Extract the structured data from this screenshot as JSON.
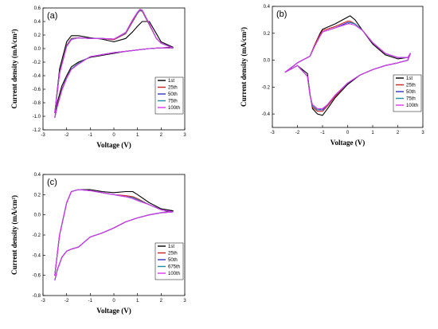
{
  "chart_data": [
    {
      "type": "line",
      "panel_label": "(a)",
      "xlabel": "Voltage (V)",
      "ylabel": "Current density (mA/cm²)",
      "xlim": [
        -3,
        3
      ],
      "ylim": [
        -1.2,
        0.6
      ],
      "xticks": [
        -3,
        -2,
        -1,
        0,
        1,
        2,
        3
      ],
      "yticks": [
        -1.2,
        -1.0,
        -0.8,
        -0.6,
        -0.4,
        -0.2,
        0.0,
        0.2,
        0.4,
        0.6
      ],
      "legend": [
        "1st",
        "25th",
        "50th",
        "75th",
        "100th"
      ],
      "legend_colors": [
        "#000000",
        "#cc2222",
        "#3333cc",
        "#1a8fa0",
        "#dd33ee"
      ],
      "series": [
        {
          "name": "1st",
          "x": [
            -2.5,
            -2.3,
            -2.0,
            -1.8,
            -1.5,
            -1.0,
            -0.5,
            0.0,
            0.5,
            0.8,
            1.0,
            1.2,
            1.5,
            1.8,
            2.0,
            2.5,
            2.0,
            1.5,
            1.0,
            0.5,
            0.0,
            -0.5,
            -1.0,
            -1.5,
            -1.8,
            -2.0,
            -2.2,
            -2.4,
            -2.5
          ],
          "y": [
            -0.95,
            -0.3,
            0.1,
            0.19,
            0.19,
            0.16,
            0.14,
            0.1,
            0.15,
            0.25,
            0.33,
            0.4,
            0.4,
            0.22,
            0.1,
            0.02,
            0.01,
            0.0,
            -0.02,
            -0.04,
            -0.07,
            -0.1,
            -0.13,
            -0.2,
            -0.27,
            -0.4,
            -0.55,
            -0.8,
            -1.02
          ]
        },
        {
          "name": "25th",
          "x": [
            -2.5,
            -2.3,
            -2.0,
            -1.8,
            -1.5,
            -1.0,
            -0.5,
            0.0,
            0.5,
            0.8,
            1.0,
            1.1,
            1.2,
            1.5,
            1.8,
            2.0,
            2.5,
            2.0,
            1.5,
            1.0,
            0.5,
            0.0,
            -0.5,
            -1.0,
            -1.5,
            -1.8,
            -2.0,
            -2.2,
            -2.4,
            -2.5
          ],
          "y": [
            -0.95,
            -0.35,
            0.05,
            0.15,
            0.16,
            0.15,
            0.15,
            0.13,
            0.22,
            0.4,
            0.52,
            0.56,
            0.55,
            0.35,
            0.15,
            0.08,
            0.01,
            0.01,
            0.0,
            -0.02,
            -0.04,
            -0.06,
            -0.09,
            -0.12,
            -0.22,
            -0.3,
            -0.42,
            -0.6,
            -0.85,
            -1.02
          ]
        },
        {
          "name": "50th",
          "x": [
            -2.5,
            -2.3,
            -2.0,
            -1.8,
            -1.5,
            -1.0,
            -0.5,
            0.0,
            0.5,
            0.8,
            1.0,
            1.1,
            1.2,
            1.5,
            1.8,
            2.0,
            2.5,
            2.0,
            1.5,
            1.0,
            0.5,
            0.0,
            -0.5,
            -1.0,
            -1.5,
            -1.8,
            -2.0,
            -2.2,
            -2.4,
            -2.5
          ],
          "y": [
            -0.95,
            -0.36,
            0.04,
            0.14,
            0.16,
            0.15,
            0.15,
            0.14,
            0.23,
            0.42,
            0.53,
            0.57,
            0.56,
            0.36,
            0.15,
            0.08,
            0.01,
            0.01,
            0.0,
            -0.02,
            -0.04,
            -0.06,
            -0.09,
            -0.12,
            -0.22,
            -0.3,
            -0.43,
            -0.61,
            -0.86,
            -1.02
          ]
        },
        {
          "name": "75th",
          "x": [
            -2.5,
            -2.3,
            -2.0,
            -1.8,
            -1.5,
            -1.0,
            -0.5,
            0.0,
            0.5,
            0.8,
            1.0,
            1.1,
            1.2,
            1.5,
            1.8,
            2.0,
            2.5,
            2.0,
            1.5,
            1.0,
            0.5,
            0.0,
            -0.5,
            -1.0,
            -1.5,
            -1.8,
            -2.0,
            -2.2,
            -2.4,
            -2.5
          ],
          "y": [
            -0.95,
            -0.36,
            0.04,
            0.14,
            0.16,
            0.15,
            0.15,
            0.14,
            0.23,
            0.42,
            0.53,
            0.57,
            0.56,
            0.36,
            0.15,
            0.08,
            0.01,
            0.01,
            0.0,
            -0.02,
            -0.04,
            -0.06,
            -0.09,
            -0.12,
            -0.22,
            -0.3,
            -0.43,
            -0.61,
            -0.86,
            -1.02
          ]
        },
        {
          "name": "100th",
          "x": [
            -2.5,
            -2.3,
            -2.0,
            -1.8,
            -1.5,
            -1.0,
            -0.5,
            0.0,
            0.5,
            0.8,
            1.0,
            1.1,
            1.2,
            1.5,
            1.8,
            2.0,
            2.5,
            2.0,
            1.5,
            1.0,
            0.5,
            0.0,
            -0.5,
            -1.0,
            -1.5,
            -1.8,
            -2.0,
            -2.2,
            -2.4,
            -2.5
          ],
          "y": [
            -0.95,
            -0.37,
            0.03,
            0.13,
            0.16,
            0.15,
            0.15,
            0.14,
            0.24,
            0.43,
            0.54,
            0.58,
            0.57,
            0.37,
            0.15,
            0.08,
            0.01,
            0.01,
            0.0,
            -0.02,
            -0.04,
            -0.06,
            -0.09,
            -0.12,
            -0.23,
            -0.31,
            -0.44,
            -0.62,
            -0.86,
            -1.02
          ]
        }
      ]
    },
    {
      "type": "line",
      "panel_label": "(b)",
      "xlabel": "Voltage (V)",
      "ylabel": "Current density (mA/cm²)",
      "xlim": [
        -3,
        3
      ],
      "ylim": [
        -0.5,
        0.4
      ],
      "xticks": [
        -3,
        -2,
        -1,
        0,
        1,
        2,
        3
      ],
      "yticks": [
        -0.4,
        -0.2,
        0.0,
        0.2,
        0.4
      ],
      "legend": [
        "1st",
        "25th",
        "50th",
        "75th",
        "100th"
      ],
      "legend_colors": [
        "#000000",
        "#cc2222",
        "#3333cc",
        "#1a8fa0",
        "#dd33ee"
      ],
      "series": [
        {
          "name": "1st",
          "x": [
            -2.5,
            -2.0,
            -1.5,
            -1.3,
            -1.1,
            -1.0,
            -0.5,
            0.0,
            0.1,
            0.3,
            0.6,
            1.0,
            1.5,
            2.0,
            2.4,
            2.5,
            2.4,
            2.0,
            1.5,
            1.0,
            0.5,
            0.0,
            -0.5,
            -0.8,
            -1.0,
            -1.2,
            -1.4,
            -1.5,
            -1.6,
            -2.0,
            -2.5
          ],
          "y": [
            -0.09,
            -0.02,
            0.03,
            0.12,
            0.2,
            0.23,
            0.27,
            0.32,
            0.33,
            0.3,
            0.22,
            0.12,
            0.04,
            0.01,
            0.02,
            0.05,
            0.0,
            -0.02,
            -0.04,
            -0.07,
            -0.11,
            -0.18,
            -0.28,
            -0.36,
            -0.41,
            -0.4,
            -0.36,
            -0.25,
            -0.1,
            -0.04,
            -0.09
          ]
        },
        {
          "name": "25th",
          "x": [
            -2.5,
            -2.0,
            -1.5,
            -1.3,
            -1.1,
            -1.0,
            -0.5,
            0.0,
            0.1,
            0.3,
            0.6,
            1.0,
            1.5,
            2.0,
            2.4,
            2.5,
            2.4,
            2.0,
            1.5,
            1.0,
            0.5,
            0.0,
            -0.5,
            -0.8,
            -1.0,
            -1.2,
            -1.4,
            -1.5,
            -1.6,
            -2.0,
            -2.5
          ],
          "y": [
            -0.09,
            -0.02,
            0.03,
            0.12,
            0.19,
            0.22,
            0.25,
            0.29,
            0.29,
            0.27,
            0.22,
            0.13,
            0.05,
            0.02,
            0.02,
            0.05,
            0.0,
            -0.02,
            -0.04,
            -0.07,
            -0.11,
            -0.17,
            -0.27,
            -0.34,
            -0.38,
            -0.38,
            -0.35,
            -0.26,
            -0.12,
            -0.04,
            -0.09
          ]
        },
        {
          "name": "50th",
          "x": [
            -2.5,
            -2.0,
            -1.5,
            -1.3,
            -1.1,
            -1.0,
            -0.5,
            0.0,
            0.1,
            0.3,
            0.6,
            1.0,
            1.5,
            2.0,
            2.4,
            2.5,
            2.4,
            2.0,
            1.5,
            1.0,
            0.5,
            0.0,
            -0.5,
            -0.8,
            -1.0,
            -1.2,
            -1.4,
            -1.5,
            -1.6,
            -2.0,
            -2.5
          ],
          "y": [
            -0.09,
            -0.02,
            0.03,
            0.11,
            0.18,
            0.21,
            0.24,
            0.28,
            0.28,
            0.27,
            0.22,
            0.13,
            0.05,
            0.02,
            0.02,
            0.05,
            0.0,
            -0.02,
            -0.04,
            -0.07,
            -0.11,
            -0.17,
            -0.26,
            -0.33,
            -0.37,
            -0.37,
            -0.34,
            -0.26,
            -0.12,
            -0.04,
            -0.09
          ]
        },
        {
          "name": "75th",
          "x": [
            -2.5,
            -2.0,
            -1.5,
            -1.3,
            -1.1,
            -1.0,
            -0.5,
            0.0,
            0.1,
            0.3,
            0.6,
            1.0,
            1.5,
            2.0,
            2.4,
            2.5,
            2.4,
            2.0,
            1.5,
            1.0,
            0.5,
            0.0,
            -0.5,
            -0.8,
            -1.0,
            -1.2,
            -1.4,
            -1.5,
            -1.6,
            -2.0,
            -2.5
          ],
          "y": [
            -0.09,
            -0.02,
            0.03,
            0.11,
            0.18,
            0.21,
            0.24,
            0.27,
            0.28,
            0.27,
            0.22,
            0.13,
            0.05,
            0.02,
            0.02,
            0.05,
            0.0,
            -0.02,
            -0.04,
            -0.07,
            -0.11,
            -0.17,
            -0.26,
            -0.33,
            -0.36,
            -0.37,
            -0.34,
            -0.26,
            -0.12,
            -0.04,
            -0.09
          ]
        },
        {
          "name": "100th",
          "x": [
            -2.5,
            -2.0,
            -1.5,
            -1.3,
            -1.1,
            -1.0,
            -0.5,
            0.0,
            0.1,
            0.3,
            0.6,
            1.0,
            1.5,
            2.0,
            2.4,
            2.5,
            2.4,
            2.0,
            1.5,
            1.0,
            0.5,
            0.0,
            -0.5,
            -0.8,
            -1.0,
            -1.2,
            -1.4,
            -1.5,
            -1.6,
            -2.0,
            -2.5
          ],
          "y": [
            -0.09,
            -0.02,
            0.03,
            0.11,
            0.18,
            0.21,
            0.24,
            0.27,
            0.27,
            0.26,
            0.22,
            0.13,
            0.05,
            0.02,
            0.02,
            0.05,
            0.0,
            -0.02,
            -0.04,
            -0.07,
            -0.11,
            -0.17,
            -0.26,
            -0.33,
            -0.36,
            -0.36,
            -0.33,
            -0.26,
            -0.12,
            -0.04,
            -0.09
          ]
        }
      ]
    },
    {
      "type": "line",
      "panel_label": "(c)",
      "xlabel": "Voltage (V)",
      "ylabel": "Current density (mA/cm²)",
      "xlim": [
        -3,
        3
      ],
      "ylim": [
        -0.8,
        0.4
      ],
      "xticks": [
        -3,
        -2,
        -1,
        0,
        1,
        2,
        3
      ],
      "yticks": [
        -0.8,
        -0.6,
        -0.4,
        -0.2,
        0.0,
        0.2,
        0.4
      ],
      "legend": [
        "1st",
        "25th",
        "50th",
        "675th",
        "100th"
      ],
      "legend_colors": [
        "#000000",
        "#cc2222",
        "#3333cc",
        "#1a8fa0",
        "#dd33ee"
      ],
      "series": [
        {
          "name": "1st",
          "x": [
            -2.5,
            -2.3,
            -2.0,
            -1.8,
            -1.5,
            -1.0,
            -0.5,
            0.0,
            0.5,
            0.8,
            1.0,
            1.5,
            2.0,
            2.5,
            2.0,
            1.5,
            1.0,
            0.5,
            0.0,
            -0.5,
            -1.0,
            -1.5,
            -1.8,
            -2.0,
            -2.2,
            -2.4,
            -2.5
          ],
          "y": [
            -0.6,
            -0.2,
            0.12,
            0.23,
            0.25,
            0.25,
            0.23,
            0.22,
            0.23,
            0.23,
            0.2,
            0.12,
            0.06,
            0.04,
            0.02,
            0.0,
            -0.03,
            -0.07,
            -0.13,
            -0.18,
            -0.22,
            -0.32,
            -0.34,
            -0.36,
            -0.42,
            -0.55,
            -0.65
          ]
        },
        {
          "name": "25th",
          "x": [
            -2.5,
            -2.3,
            -2.0,
            -1.8,
            -1.5,
            -1.0,
            -0.5,
            0.0,
            0.5,
            0.8,
            1.0,
            1.5,
            2.0,
            2.5,
            2.0,
            1.5,
            1.0,
            0.5,
            0.0,
            -0.5,
            -1.0,
            -1.5,
            -1.8,
            -2.0,
            -2.2,
            -2.4,
            -2.5
          ],
          "y": [
            -0.6,
            -0.2,
            0.12,
            0.23,
            0.25,
            0.24,
            0.22,
            0.2,
            0.19,
            0.18,
            0.16,
            0.1,
            0.05,
            0.03,
            0.02,
            0.0,
            -0.03,
            -0.07,
            -0.13,
            -0.18,
            -0.22,
            -0.32,
            -0.34,
            -0.36,
            -0.42,
            -0.55,
            -0.65
          ]
        },
        {
          "name": "50th",
          "x": [
            -2.5,
            -2.3,
            -2.0,
            -1.8,
            -1.5,
            -1.0,
            -0.5,
            0.0,
            0.5,
            0.8,
            1.0,
            1.5,
            2.0,
            2.5,
            2.0,
            1.5,
            1.0,
            0.5,
            0.0,
            -0.5,
            -1.0,
            -1.5,
            -1.8,
            -2.0,
            -2.2,
            -2.4,
            -2.5
          ],
          "y": [
            -0.6,
            -0.2,
            0.12,
            0.23,
            0.25,
            0.24,
            0.22,
            0.2,
            0.18,
            0.17,
            0.15,
            0.1,
            0.05,
            0.03,
            0.02,
            0.0,
            -0.03,
            -0.07,
            -0.13,
            -0.18,
            -0.22,
            -0.32,
            -0.34,
            -0.36,
            -0.42,
            -0.55,
            -0.65
          ]
        },
        {
          "name": "675th",
          "x": [
            -2.5,
            -2.3,
            -2.0,
            -1.8,
            -1.5,
            -1.0,
            -0.5,
            0.0,
            0.5,
            0.8,
            1.0,
            1.5,
            2.0,
            2.5,
            2.0,
            1.5,
            1.0,
            0.5,
            0.0,
            -0.5,
            -1.0,
            -1.5,
            -1.8,
            -2.0,
            -2.2,
            -2.4,
            -2.5
          ],
          "y": [
            -0.6,
            -0.2,
            0.12,
            0.23,
            0.25,
            0.24,
            0.22,
            0.2,
            0.18,
            0.17,
            0.15,
            0.1,
            0.05,
            0.03,
            0.02,
            0.0,
            -0.03,
            -0.07,
            -0.13,
            -0.18,
            -0.22,
            -0.32,
            -0.34,
            -0.36,
            -0.42,
            -0.55,
            -0.65
          ]
        },
        {
          "name": "100th",
          "x": [
            -2.5,
            -2.3,
            -2.0,
            -1.8,
            -1.5,
            -1.0,
            -0.5,
            0.0,
            0.5,
            0.8,
            1.0,
            1.5,
            2.0,
            2.5,
            2.0,
            1.5,
            1.0,
            0.5,
            0.0,
            -0.5,
            -1.0,
            -1.5,
            -1.8,
            -2.0,
            -2.2,
            -2.4,
            -2.5
          ],
          "y": [
            -0.6,
            -0.2,
            0.12,
            0.23,
            0.25,
            0.24,
            0.22,
            0.2,
            0.18,
            0.16,
            0.14,
            0.1,
            0.05,
            0.03,
            0.02,
            0.0,
            -0.03,
            -0.07,
            -0.13,
            -0.18,
            -0.22,
            -0.32,
            -0.34,
            -0.36,
            -0.42,
            -0.55,
            -0.65
          ]
        }
      ]
    }
  ]
}
